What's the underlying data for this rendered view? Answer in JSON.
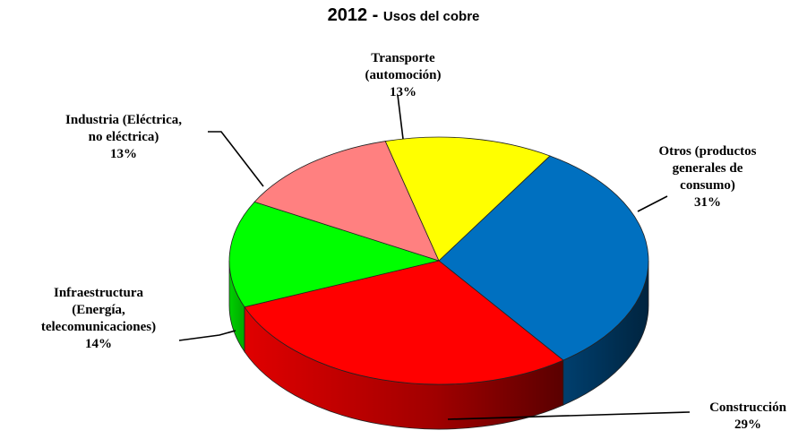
{
  "title": {
    "year": "2012",
    "separator": " - ",
    "text": "Usos del cobre"
  },
  "chart_data": {
    "type": "pie",
    "title": "2012 - Usos del cobre",
    "slices": [
      {
        "label": [
          "Otros (productos",
          "generales de",
          "consumo)"
        ],
        "percent_label": "31%",
        "value": 31,
        "color": "#0070C0"
      },
      {
        "label": [
          "Construcción"
        ],
        "percent_label": "29%",
        "value": 29,
        "color": "#FF0000"
      },
      {
        "label": [
          "Infraestructura",
          "(Energía,",
          "telecomunicaciones)"
        ],
        "percent_label": "14%",
        "value": 14,
        "color": "#00FF00"
      },
      {
        "label": [
          "Industria (Eléctrica,",
          "no eléctrica)"
        ],
        "percent_label": "13%",
        "value": 13,
        "color": "#FF8080"
      },
      {
        "label": [
          "Transporte",
          "(automoción)"
        ],
        "percent_label": "13%",
        "value": 13,
        "color": "#FFFF00"
      }
    ]
  }
}
